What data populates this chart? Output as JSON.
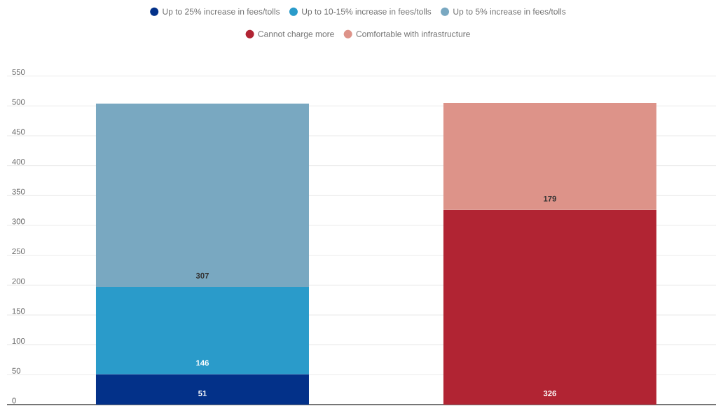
{
  "chart_data": {
    "type": "bar",
    "stacked": true,
    "categories": [
      null,
      null
    ],
    "series": [
      {
        "name": "Up to 25% increase in fees/tolls",
        "color": "#033189",
        "values": [
          51,
          null
        ]
      },
      {
        "name": "Up to 10-15% increase in fees/tolls",
        "color": "#2a9bca",
        "values": [
          146,
          null
        ]
      },
      {
        "name": "Up to 5% increase in fees/tolls",
        "color": "#79a8c1",
        "values": [
          307,
          null
        ]
      },
      {
        "name": "Cannot charge more",
        "color": "#b12433",
        "values": [
          null,
          326
        ]
      },
      {
        "name": "Comfortable with infrastructure",
        "color": "#dd9389",
        "values": [
          null,
          179
        ]
      }
    ],
    "ylim": [
      0,
      550
    ],
    "yticks": [
      0,
      50,
      100,
      150,
      200,
      250,
      300,
      350,
      400,
      450,
      500,
      550
    ],
    "grid": "y",
    "legend": "top",
    "data_labels": true
  }
}
